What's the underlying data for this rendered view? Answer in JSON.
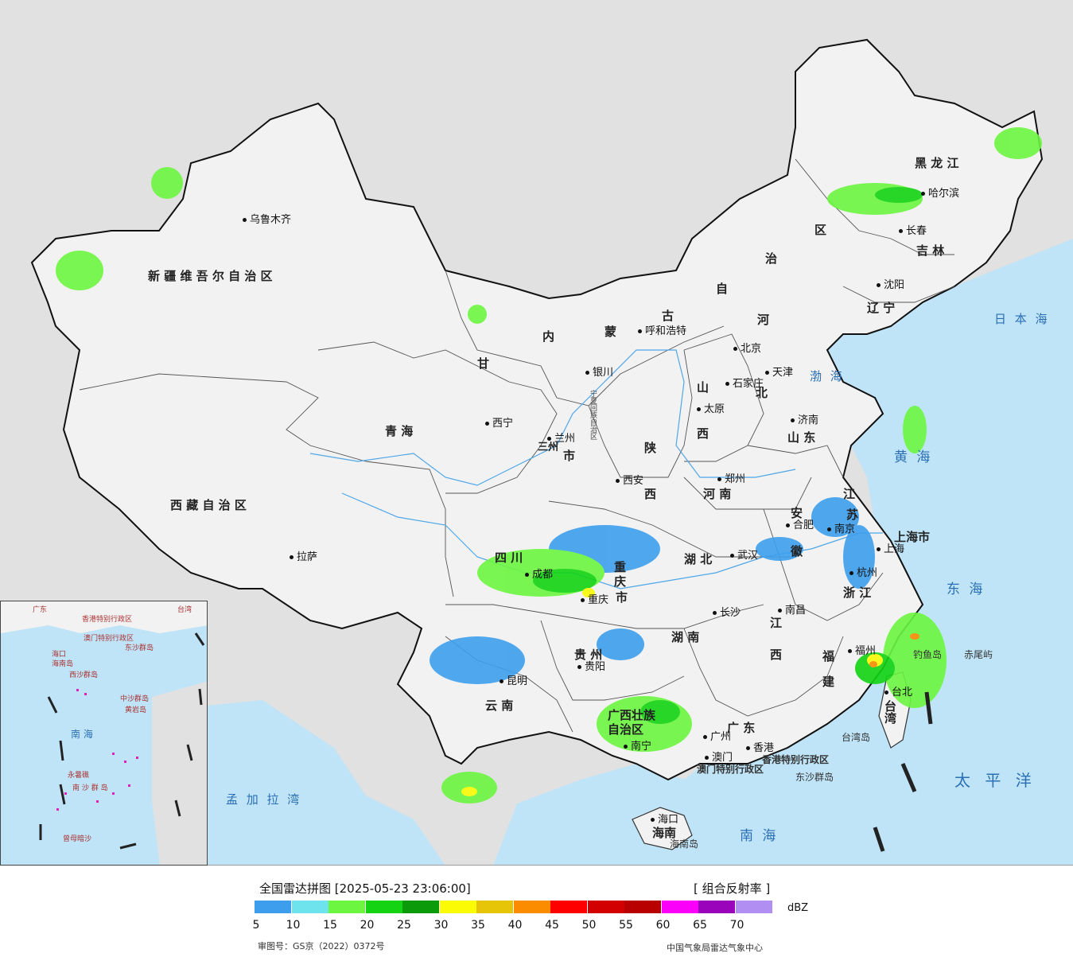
{
  "map": {
    "provinces": [
      {
        "name": "新 疆 维 吾 尔 自 治 区"
      },
      {
        "name": "西 藏 自 治 区"
      },
      {
        "name": "青        海"
      },
      {
        "name": "甘"
      },
      {
        "name": "内"
      },
      {
        "name": "蒙"
      },
      {
        "name": "古"
      },
      {
        "name": "自"
      },
      {
        "name": "治"
      },
      {
        "name": "区"
      },
      {
        "name": "黑   龙   江"
      },
      {
        "name": "吉   林"
      },
      {
        "name": "辽   宁"
      },
      {
        "name": "河"
      },
      {
        "name": "北"
      },
      {
        "name": "山"
      },
      {
        "name": "西"
      },
      {
        "name": "陕"
      },
      {
        "name": "西"
      },
      {
        "name": "河  南"
      },
      {
        "name": "山  东"
      },
      {
        "name": "江"
      },
      {
        "name": "苏"
      },
      {
        "name": "安"
      },
      {
        "name": "徽"
      },
      {
        "name": "浙  江"
      },
      {
        "name": "四   川"
      },
      {
        "name": "重"
      },
      {
        "name": "庆"
      },
      {
        "name": "市"
      },
      {
        "name": "湖   北"
      },
      {
        "name": "湖   南"
      },
      {
        "name": "江"
      },
      {
        "name": "西"
      },
      {
        "name": "福"
      },
      {
        "name": "建"
      },
      {
        "name": "贵   州"
      },
      {
        "name": "云   南"
      },
      {
        "name": "广西壮族"
      },
      {
        "name": "自治区"
      },
      {
        "name": "广   东"
      },
      {
        "name": "海南"
      },
      {
        "name": "上海市"
      },
      {
        "name": "台湾"
      },
      {
        "name": "三州"
      },
      {
        "name": "市"
      },
      {
        "name": "宁夏回族自治区"
      }
    ],
    "cities": [
      {
        "name": "乌鲁木齐"
      },
      {
        "name": "拉萨"
      },
      {
        "name": "西宁"
      },
      {
        "name": "兰州"
      },
      {
        "name": "银川"
      },
      {
        "name": "呼和浩特"
      },
      {
        "name": "北京"
      },
      {
        "name": "天津"
      },
      {
        "name": "石家庄"
      },
      {
        "name": "太原"
      },
      {
        "name": "济南"
      },
      {
        "name": "郑州"
      },
      {
        "name": "西安"
      },
      {
        "name": "合肥"
      },
      {
        "name": "南京"
      },
      {
        "name": "上海"
      },
      {
        "name": "杭州"
      },
      {
        "name": "武汉"
      },
      {
        "name": "南昌"
      },
      {
        "name": "福州"
      },
      {
        "name": "长沙"
      },
      {
        "name": "贵阳"
      },
      {
        "name": "昆明"
      },
      {
        "name": "南宁"
      },
      {
        "name": "广州"
      },
      {
        "name": "香港"
      },
      {
        "name": "澳门"
      },
      {
        "name": "海口"
      },
      {
        "name": "台北"
      },
      {
        "name": "重庆"
      },
      {
        "name": "成都"
      },
      {
        "name": "沈阳"
      },
      {
        "name": "长春"
      },
      {
        "name": "哈尔滨"
      }
    ],
    "seas": [
      "日 本 海",
      "渤 海",
      "黄 海",
      "东 海",
      "太 平 洋",
      "南 海",
      "孟 加 拉 湾"
    ],
    "islands": [
      "钓鱼岛",
      "赤尾屿",
      "台湾岛",
      "海南岛",
      "东沙群岛",
      "香港特别行政区",
      "澳门特别行政区"
    ],
    "inset_labels": [
      "海口",
      "海南岛",
      "西沙群岛",
      "中沙群岛",
      "黄岩岛",
      "南 海",
      "永暑礁",
      "南 沙 群 岛",
      "曾母暗沙",
      "香港特别行政区",
      "澳门特别行政区",
      "东沙群岛",
      "台湾",
      "广东"
    ]
  },
  "legend": {
    "title": "全国雷达拼图 [2025-05-23 23:06:00]",
    "product": "[ 组合反射率 ]",
    "unit": "dBZ",
    "colors": [
      "#3d9eed",
      "#6ee3ee",
      "#6cf640",
      "#13d313",
      "#0a9a0a",
      "#fbfb05",
      "#e6c407",
      "#fb8c00",
      "#ff0000",
      "#d30000",
      "#b80000",
      "#fa00fa",
      "#9a04ba",
      "#b18ef2"
    ],
    "ticks": [
      "5",
      "10",
      "15",
      "20",
      "25",
      "30",
      "35",
      "40",
      "45",
      "50",
      "55",
      "60",
      "65",
      "70"
    ],
    "approval": "审图号：GS京（2022）0372号",
    "source": "中国气象局雷达气象中心"
  }
}
